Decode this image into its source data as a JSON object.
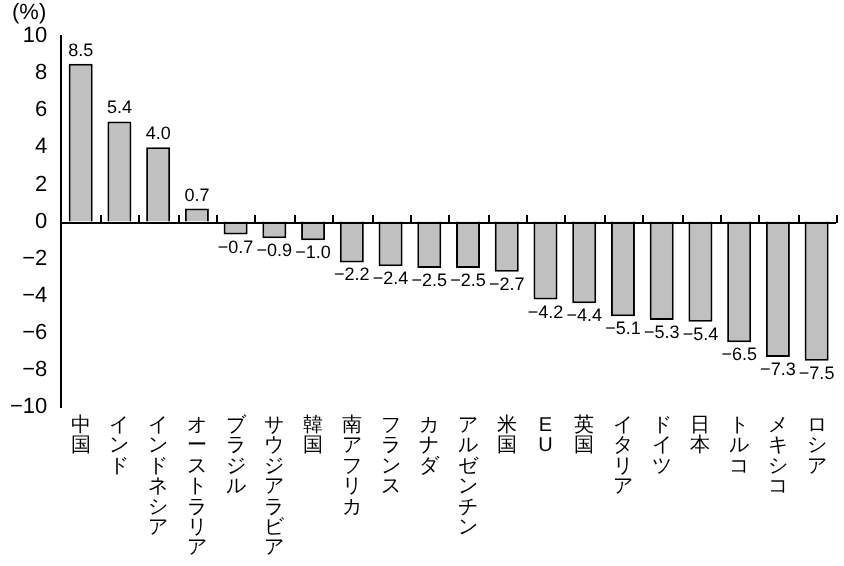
{
  "chart_data": {
    "type": "bar",
    "ylabel": "(%)",
    "categories": [
      "中国",
      "インド",
      "インドネシア",
      "オーストラリア",
      "ブラジル",
      "サウジアラビア",
      "韓国",
      "南アフリカ",
      "フランス",
      "カナダ",
      "アルゼンチン",
      "米国",
      "EU",
      "英国",
      "イタリア",
      "ドイツ",
      "日本",
      "トルコ",
      "メキシコ",
      "ロシア"
    ],
    "values": [
      8.5,
      5.4,
      4.0,
      0.7,
      -0.7,
      -0.9,
      -1.0,
      -2.2,
      -2.4,
      -2.5,
      -2.5,
      -2.7,
      -4.2,
      -4.4,
      -5.1,
      -5.3,
      -5.4,
      -6.5,
      -7.3,
      -7.5
    ],
    "value_labels": [
      "8.5",
      "5.4",
      "4.0",
      "0.7",
      "−0.7",
      "−0.9",
      "−1.0",
      "−2.2",
      "−2.4",
      "−2.5",
      "−2.5",
      "−2.7",
      "−4.2",
      "−4.4",
      "−5.1",
      "−5.3",
      "−5.4",
      "−6.5",
      "−7.3",
      "−7.5"
    ],
    "color": "#c0c0c0",
    "ylim": [
      -10,
      10
    ],
    "yticks": [
      -10,
      -8,
      -6,
      -4,
      -2,
      0,
      2,
      4,
      6,
      8,
      10
    ]
  }
}
